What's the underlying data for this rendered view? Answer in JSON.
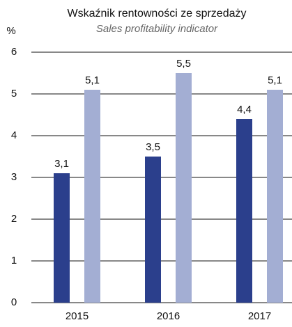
{
  "chart_data": {
    "type": "bar",
    "title": "Wskaźnik rentowności ze sprzedaży",
    "subtitle": "Sales profitability indicator",
    "y_label": "%",
    "categories": [
      "2015",
      "2016",
      "2017"
    ],
    "series": [
      {
        "color": "#2b3f8c",
        "values": [
          3.1,
          3.5,
          4.4
        ],
        "value_labels": [
          "3,1",
          "3,5",
          "4,4"
        ]
      },
      {
        "color": "#a3aed3",
        "values": [
          5.1,
          5.5,
          5.1
        ],
        "value_labels": [
          "5,1",
          "5,5",
          "5,1"
        ]
      }
    ],
    "ylim": [
      0,
      6
    ],
    "yticks": [
      0,
      1,
      2,
      3,
      4,
      5,
      6
    ],
    "grid": true
  }
}
